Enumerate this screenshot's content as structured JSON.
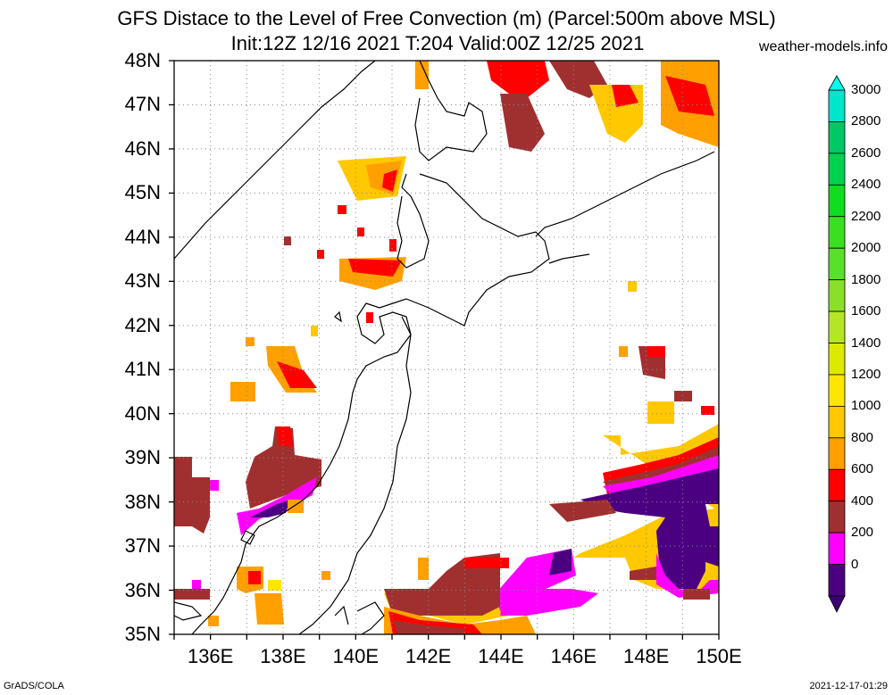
{
  "header": {
    "title_line1": "GFS Distace to the Level of Free Convection (m) (Parcel:500m above MSL)",
    "title_line2": "Init:12Z 12/16 2021 T:204 Valid:00Z 12/25 2021",
    "site": "weather-models.info"
  },
  "map": {
    "lat_labels": [
      "48N",
      "47N",
      "46N",
      "45N",
      "44N",
      "43N",
      "42N",
      "41N",
      "40N",
      "39N",
      "38N",
      "37N",
      "36N",
      "35N"
    ],
    "lon_labels": [
      "136E",
      "138E",
      "140E",
      "142E",
      "144E",
      "146E",
      "148E",
      "150E"
    ],
    "extent": {
      "lon_min": 135,
      "lon_max": 150,
      "lat_min": 35,
      "lat_max": 48
    }
  },
  "colorbar": {
    "labels": [
      "3000",
      "2800",
      "2600",
      "2400",
      "2200",
      "2000",
      "1800",
      "1600",
      "1400",
      "1200",
      "1000",
      "800",
      "600",
      "400",
      "200",
      "0"
    ],
    "colors": [
      "#00e5cc",
      "#00c864",
      "#00d250",
      "#10dc20",
      "#3ae020",
      "#5ae028",
      "#8ae028",
      "#b4e628",
      "#dcea00",
      "#ffe600",
      "#ffc800",
      "#ffa000",
      "#ff0000",
      "#a03030",
      "#ff00ff",
      "#4b0082"
    ]
  },
  "footer": {
    "left": "GrADS/COLA",
    "right": "2021-12-17-01:29"
  }
}
